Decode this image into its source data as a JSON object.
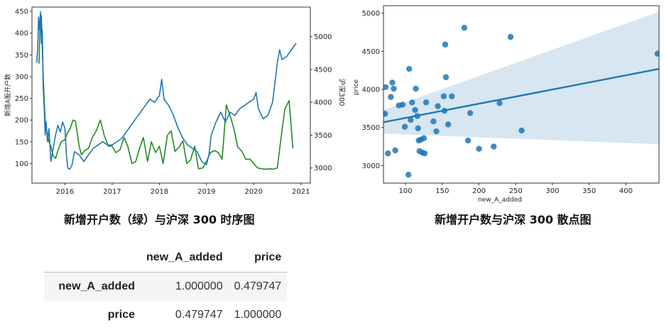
{
  "chart_data": [
    {
      "type": "line",
      "title": "",
      "xlabel": "",
      "ylabel_left": "新增A股开户数",
      "ylabel_right": "沪深300",
      "x_ticks": [
        "2016",
        "2017",
        "2018",
        "2019",
        "2020",
        "2021"
      ],
      "y_left_ticks": [
        "100",
        "150",
        "200",
        "250",
        "300",
        "350",
        "400",
        "450"
      ],
      "y_right_ticks": [
        "3000",
        "3500",
        "4000",
        "4500",
        "5000"
      ],
      "xlim": [
        2015.3,
        2021.2
      ],
      "ylim_left": [
        55,
        460
      ],
      "ylim_right": [
        2770,
        5450
      ],
      "series": [
        {
          "name": "",
          "axis": "left",
          "color": "#228b22",
          "x": [
            2015.45,
            2015.47,
            2015.5,
            2015.52,
            2015.55,
            2015.58,
            2015.62,
            2015.66,
            2015.7,
            2015.75,
            2015.8,
            2015.85,
            2015.92,
            2016.0,
            2016.05,
            2016.1,
            2016.17,
            2016.22,
            2016.26,
            2016.3,
            2016.35,
            2016.42,
            2016.5,
            2016.58,
            2016.66,
            2016.75,
            2016.83,
            2016.92,
            2017.0,
            2017.08,
            2017.17,
            2017.25,
            2017.33,
            2017.42,
            2017.5,
            2017.58,
            2017.66,
            2017.75,
            2017.83,
            2017.92,
            2018.0,
            2018.08,
            2018.17,
            2018.25,
            2018.33,
            2018.42,
            2018.5,
            2018.58,
            2018.66,
            2018.75,
            2018.83,
            2018.92,
            2019.0,
            2019.08,
            2019.17,
            2019.25,
            2019.33,
            2019.42,
            2019.5,
            2019.58,
            2019.66,
            2019.75,
            2019.83,
            2019.92,
            2020.0,
            2020.08,
            2020.17,
            2020.25,
            2020.33,
            2020.42,
            2020.5,
            2020.58,
            2020.66,
            2020.75,
            2020.83
          ],
          "values": [
            330,
            420,
            440,
            360,
            270,
            200,
            170,
            150,
            140,
            118,
            112,
            130,
            150,
            155,
            170,
            178,
            200,
            198,
            170,
            140,
            120,
            130,
            135,
            160,
            175,
            200,
            165,
            140,
            140,
            125,
            132,
            160,
            140,
            100,
            105,
            135,
            160,
            105,
            150,
            125,
            140,
            100,
            165,
            175,
            128,
            138,
            152,
            100,
            108,
            140,
            88,
            90,
            105,
            125,
            130,
            125,
            110,
            235,
            210,
            180,
            138,
            128,
            110,
            110,
            100,
            90,
            88,
            87,
            88,
            87,
            90,
            160,
            225,
            245,
            135
          ]
        },
        {
          "name": "",
          "axis": "right",
          "color": "#1f77b4",
          "x": [
            2015.4,
            2015.42,
            2015.44,
            2015.46,
            2015.48,
            2015.5,
            2015.52,
            2015.54,
            2015.56,
            2015.58,
            2015.6,
            2015.63,
            2015.66,
            2015.7,
            2015.75,
            2015.8,
            2015.85,
            2015.9,
            2015.95,
            2016.0,
            2016.03,
            2016.06,
            2016.1,
            2016.15,
            2016.2,
            2016.3,
            2016.4,
            2016.5,
            2016.6,
            2016.7,
            2016.8,
            2016.9,
            2017.0,
            2017.2,
            2017.4,
            2017.5,
            2017.7,
            2017.8,
            2017.9,
            2018.0,
            2018.05,
            2018.1,
            2018.2,
            2018.3,
            2018.4,
            2018.5,
            2018.6,
            2018.7,
            2018.8,
            2018.9,
            2019.0,
            2019.05,
            2019.1,
            2019.2,
            2019.3,
            2019.4,
            2019.5,
            2019.6,
            2019.7,
            2019.8,
            2019.9,
            2020.0,
            2020.05,
            2020.1,
            2020.2,
            2020.3,
            2020.4,
            2020.5,
            2020.55,
            2020.6,
            2020.7,
            2020.8,
            2020.85,
            2020.9
          ],
          "values": [
            4600,
            4800,
            5300,
            5100,
            5380,
            4900,
            5100,
            4200,
            3900,
            3500,
            3700,
            3400,
            3600,
            3100,
            3300,
            3500,
            3650,
            3550,
            3700,
            3600,
            3200,
            3000,
            2980,
            3050,
            3250,
            3200,
            3100,
            3200,
            3300,
            3350,
            3400,
            3350,
            3350,
            3450,
            3650,
            3750,
            3950,
            4050,
            4000,
            4100,
            4350,
            4050,
            3950,
            3800,
            3600,
            3450,
            3350,
            3300,
            3250,
            3100,
            3050,
            3200,
            3500,
            3700,
            3850,
            3700,
            3850,
            3800,
            3900,
            3950,
            4000,
            4050,
            4150,
            3900,
            3750,
            3800,
            4000,
            4600,
            4800,
            4650,
            4700,
            4800,
            4850,
            4900
          ]
        }
      ]
    },
    {
      "type": "scatter",
      "title": "",
      "xlabel": "new_A_added",
      "ylabel": "price",
      "x_ticks": [
        "100",
        "150",
        "200",
        "250",
        "300",
        "350",
        "400"
      ],
      "y_ticks": [
        "3000",
        "3500",
        "4000",
        "4500",
        "5000"
      ],
      "xlim": [
        70,
        445
      ],
      "ylim": [
        2770,
        5100
      ],
      "color": "#1f77b4",
      "regression": {
        "x": [
          70,
          445
        ],
        "y": [
          3570,
          4270
        ]
      },
      "confidence_band": {
        "x": [
          70,
          445
        ],
        "upper": [
          3730,
          5020
        ],
        "lower": [
          3420,
          3280
        ]
      },
      "points": [
        {
          "x": 72,
          "y": 3680
        },
        {
          "x": 73,
          "y": 4030
        },
        {
          "x": 76,
          "y": 3160
        },
        {
          "x": 80,
          "y": 3900
        },
        {
          "x": 82,
          "y": 4090
        },
        {
          "x": 84,
          "y": 4010
        },
        {
          "x": 86,
          "y": 3200
        },
        {
          "x": 91,
          "y": 3790
        },
        {
          "x": 96,
          "y": 3800
        },
        {
          "x": 99,
          "y": 3510
        },
        {
          "x": 104,
          "y": 2880
        },
        {
          "x": 105,
          "y": 4270
        },
        {
          "x": 107,
          "y": 3600
        },
        {
          "x": 109,
          "y": 3830
        },
        {
          "x": 113,
          "y": 3730
        },
        {
          "x": 114,
          "y": 4010
        },
        {
          "x": 116,
          "y": 3650
        },
        {
          "x": 117,
          "y": 3490
        },
        {
          "x": 118,
          "y": 3330
        },
        {
          "x": 119,
          "y": 3190
        },
        {
          "x": 121,
          "y": 3340
        },
        {
          "x": 123,
          "y": 3170
        },
        {
          "x": 125,
          "y": 3360
        },
        {
          "x": 126,
          "y": 3160
        },
        {
          "x": 128,
          "y": 3830
        },
        {
          "x": 138,
          "y": 3580
        },
        {
          "x": 142,
          "y": 3450
        },
        {
          "x": 144,
          "y": 3780
        },
        {
          "x": 152,
          "y": 3910
        },
        {
          "x": 153,
          "y": 3720
        },
        {
          "x": 154,
          "y": 4590
        },
        {
          "x": 155,
          "y": 4160
        },
        {
          "x": 158,
          "y": 3540
        },
        {
          "x": 163,
          "y": 3910
        },
        {
          "x": 180,
          "y": 4810
        },
        {
          "x": 185,
          "y": 3330
        },
        {
          "x": 188,
          "y": 3690
        },
        {
          "x": 200,
          "y": 3220
        },
        {
          "x": 220,
          "y": 3250
        },
        {
          "x": 228,
          "y": 3820
        },
        {
          "x": 243,
          "y": 4690
        },
        {
          "x": 258,
          "y": 3460
        },
        {
          "x": 443,
          "y": 4470
        }
      ]
    }
  ],
  "captions": {
    "left": "新增开户数（绿）与沪深 300 时序图",
    "right": "新增开户数与沪深 300 散点图"
  },
  "table": {
    "columns": [
      "",
      "new_A_added",
      "price"
    ],
    "rows": [
      {
        "label": "new_A_added",
        "values": [
          "1.000000",
          "0.479747"
        ]
      },
      {
        "label": "price",
        "values": [
          "0.479747",
          "1.000000"
        ]
      }
    ]
  }
}
